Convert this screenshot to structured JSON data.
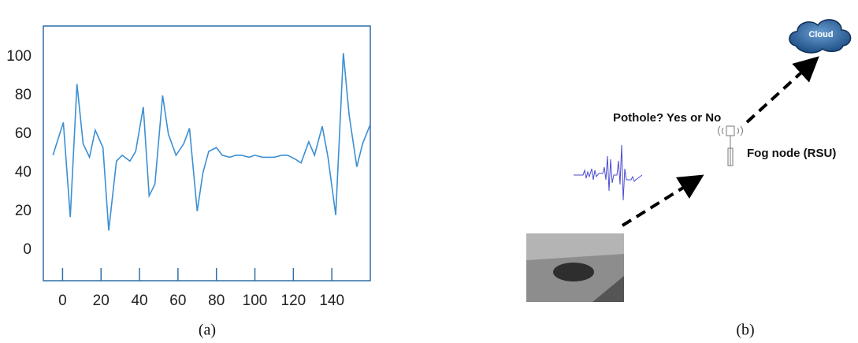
{
  "chart_data": {
    "type": "line",
    "x": [
      -5,
      0.4,
      4,
      7.5,
      10.7,
      14,
      17,
      21,
      24,
      28,
      31,
      35,
      38,
      42,
      45,
      48,
      52,
      55,
      59,
      63,
      66,
      70,
      73,
      76,
      80,
      83,
      87,
      90,
      93,
      97,
      100,
      104,
      107,
      110,
      114,
      117,
      121,
      124,
      128,
      131,
      135,
      138,
      142,
      146,
      149,
      153,
      156,
      160
    ],
    "values": [
      49,
      66,
      17,
      86,
      55,
      48,
      62,
      53,
      10,
      46,
      49,
      46,
      51,
      74,
      28,
      34,
      80,
      60,
      49,
      55,
      63,
      20,
      40,
      51,
      53,
      49,
      48,
      49,
      49,
      48,
      49,
      48,
      48,
      48,
      49,
      49,
      47,
      45,
      56,
      49,
      64,
      48,
      18,
      102,
      70,
      43,
      55,
      65
    ],
    "color": "#3b8fd4",
    "xlim": [
      -10,
      160
    ],
    "ylim": [
      -16,
      116
    ],
    "xticks": [
      0,
      20,
      40,
      60,
      80,
      100,
      120,
      140
    ],
    "yticks": [
      0,
      20,
      40,
      60,
      80,
      100
    ],
    "grid": false,
    "caption": "(a)"
  },
  "diagram": {
    "cloud": "Cloud",
    "question": "Pothole? Yes or No",
    "fog_node": "Fog node (RSU)",
    "caption": "(b)"
  }
}
